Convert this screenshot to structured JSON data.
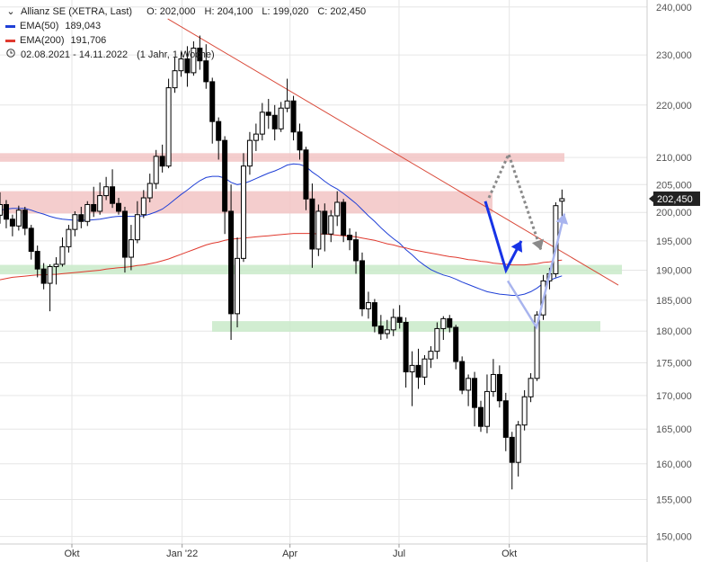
{
  "legend": {
    "title": "Allianz SE (XETRA, Last)",
    "ohlc": {
      "open": "O: 202,000",
      "high": "H: 204,100",
      "low": "L: 199,020",
      "close": "C: 202,450"
    },
    "ema50": {
      "label": "EMA(50)",
      "value": "189,043",
      "color": "#1f3fd6"
    },
    "ema200": {
      "label": "EMA(200)",
      "value": "191,706",
      "color": "#e03a2f"
    },
    "range": {
      "dates": "02.08.2021 - 14.11.2022",
      "period": "(1 Jahr, 1 Woche)",
      "icon": "clock-icon"
    }
  },
  "last_price_label": "202,450",
  "chart_data": {
    "type": "candlestick",
    "title": "",
    "y_ticks": [
      "240,000",
      "230,000",
      "220,000",
      "210,000",
      "205,000",
      "200,000",
      "195,000",
      "190,000",
      "185,000",
      "180,000",
      "175,000",
      "170,000",
      "165,000",
      "160,000",
      "155,000",
      "150,000"
    ],
    "y_tick_values": [
      240,
      230,
      220,
      210,
      205,
      200,
      195,
      190,
      185,
      180,
      175,
      170,
      165,
      160,
      155,
      150
    ],
    "y_scale": "log",
    "ylim": [
      149,
      241.5
    ],
    "x_range": [
      "2021-08-02",
      "2022-11-14"
    ],
    "x_ticks": [
      {
        "label": "Okt",
        "date": "2021-10-01"
      },
      {
        "label": "Jan '22",
        "date": "2022-01-01"
      },
      {
        "label": "Apr",
        "date": "2022-04-01"
      },
      {
        "label": "Jul",
        "date": "2022-07-01"
      },
      {
        "label": "Okt",
        "date": "2022-10-01"
      }
    ],
    "candles": [
      [
        199.5,
        201.4,
        203.6,
        198.0
      ],
      [
        201.4,
        198.8,
        202.2,
        197.2
      ],
      [
        198.8,
        197.6,
        199.6,
        195.8
      ],
      [
        197.6,
        200.4,
        201.2,
        196.8
      ],
      [
        200.4,
        197.2,
        201.0,
        196.0
      ],
      [
        197.2,
        193.2,
        197.8,
        191.8
      ],
      [
        193.2,
        190.2,
        194.2,
        188.8
      ],
      [
        190.2,
        187.8,
        191.2,
        186.8
      ],
      [
        187.8,
        190.6,
        191.0,
        183.2
      ],
      [
        190.6,
        191.0,
        192.2,
        187.6
      ],
      [
        191.0,
        194.0,
        195.6,
        190.6
      ],
      [
        194.0,
        197.0,
        197.8,
        193.0
      ],
      [
        197.0,
        199.6,
        200.2,
        195.8
      ],
      [
        199.6,
        198.4,
        201.0,
        197.2
      ],
      [
        198.4,
        201.4,
        202.0,
        197.6
      ],
      [
        201.4,
        200.2,
        204.6,
        199.2
      ],
      [
        200.2,
        203.0,
        205.4,
        199.6
      ],
      [
        203.0,
        204.6,
        206.4,
        202.2
      ],
      [
        204.6,
        201.6,
        207.8,
        200.8
      ],
      [
        201.6,
        200.2,
        202.6,
        199.6
      ],
      [
        200.2,
        192.2,
        201.0,
        189.6
      ],
      [
        192.2,
        195.2,
        197.8,
        190.0
      ],
      [
        195.2,
        199.6,
        202.0,
        194.6
      ],
      [
        199.6,
        202.6,
        204.0,
        199.0
      ],
      [
        202.6,
        205.2,
        207.0,
        201.8
      ],
      [
        205.2,
        210.2,
        211.4,
        204.2
      ],
      [
        210.2,
        208.4,
        212.4,
        207.2
      ],
      [
        208.4,
        223.4,
        225.2,
        208.0
      ],
      [
        223.4,
        226.8,
        229.6,
        222.4
      ],
      [
        226.8,
        229.2,
        230.6,
        225.6
      ],
      [
        229.2,
        226.4,
        231.8,
        223.6
      ],
      [
        226.4,
        231.4,
        232.8,
        225.8
      ],
      [
        231.4,
        228.8,
        234.0,
        227.0
      ],
      [
        228.8,
        224.6,
        232.2,
        223.2
      ],
      [
        224.6,
        216.8,
        225.4,
        212.6
      ],
      [
        216.8,
        213.2,
        217.6,
        209.6
      ],
      [
        213.2,
        200.2,
        214.0,
        196.2
      ],
      [
        200.2,
        182.8,
        205.0,
        178.6
      ],
      [
        182.8,
        192.0,
        195.6,
        180.6
      ],
      [
        192.0,
        208.4,
        210.8,
        191.4
      ],
      [
        208.4,
        213.2,
        214.8,
        206.8
      ],
      [
        213.2,
        214.4,
        216.4,
        211.2
      ],
      [
        214.4,
        218.6,
        220.4,
        213.2
      ],
      [
        218.6,
        218.0,
        221.2,
        215.4
      ],
      [
        218.0,
        215.4,
        220.0,
        213.2
      ],
      [
        215.4,
        219.4,
        220.6,
        214.8
      ],
      [
        219.4,
        220.8,
        225.2,
        218.6
      ],
      [
        220.8,
        214.8,
        221.8,
        213.2
      ],
      [
        214.8,
        211.4,
        216.4,
        209.6
      ],
      [
        211.4,
        202.4,
        212.0,
        200.4
      ],
      [
        202.4,
        193.6,
        205.2,
        190.4
      ],
      [
        193.6,
        200.2,
        201.4,
        192.4
      ],
      [
        200.2,
        196.2,
        201.6,
        193.2
      ],
      [
        196.2,
        199.4,
        200.4,
        194.8
      ],
      [
        199.4,
        201.8,
        203.8,
        197.6
      ],
      [
        201.8,
        196.0,
        202.4,
        194.8
      ],
      [
        196.0,
        195.2,
        197.2,
        193.4
      ],
      [
        195.2,
        191.6,
        196.6,
        189.4
      ],
      [
        191.6,
        183.6,
        193.0,
        182.4
      ],
      [
        183.6,
        184.6,
        186.4,
        182.0
      ],
      [
        184.6,
        180.8,
        185.2,
        179.8
      ],
      [
        180.8,
        179.6,
        182.6,
        178.6
      ],
      [
        179.6,
        180.2,
        181.8,
        178.8
      ],
      [
        180.2,
        182.2,
        183.6,
        179.2
      ],
      [
        182.2,
        181.4,
        184.2,
        180.4
      ],
      [
        181.4,
        173.6,
        182.2,
        171.2
      ],
      [
        173.6,
        174.6,
        176.8,
        168.4
      ],
      [
        174.6,
        172.8,
        177.2,
        171.0
      ],
      [
        172.8,
        175.6,
        176.2,
        171.6
      ],
      [
        175.6,
        176.8,
        177.6,
        174.2
      ],
      [
        176.8,
        180.4,
        181.4,
        175.6
      ],
      [
        180.4,
        182.0,
        182.4,
        178.6
      ],
      [
        182.0,
        180.6,
        182.6,
        179.8
      ],
      [
        180.6,
        175.2,
        181.0,
        174.0
      ],
      [
        175.2,
        170.8,
        176.0,
        170.2
      ],
      [
        170.8,
        172.6,
        173.2,
        168.4
      ],
      [
        172.6,
        168.2,
        173.6,
        165.4
      ],
      [
        168.2,
        165.4,
        169.2,
        164.6
      ],
      [
        165.4,
        170.6,
        173.2,
        164.4
      ],
      [
        170.6,
        173.2,
        175.6,
        169.8
      ],
      [
        173.2,
        169.2,
        174.6,
        168.2
      ],
      [
        169.2,
        163.8,
        170.4,
        161.8
      ],
      [
        163.8,
        160.2,
        164.6,
        156.4
      ],
      [
        160.2,
        165.6,
        166.2,
        158.2
      ],
      [
        165.6,
        169.8,
        170.8,
        164.8
      ],
      [
        169.8,
        172.6,
        173.4,
        169.0
      ],
      [
        172.6,
        182.6,
        183.2,
        172.2
      ],
      [
        182.6,
        188.2,
        189.2,
        181.8
      ],
      [
        188.2,
        189.4,
        190.4,
        186.8
      ],
      [
        189.4,
        201.2,
        201.8,
        188.8
      ],
      [
        202.0,
        202.45,
        204.1,
        199.02
      ]
    ],
    "series": [
      {
        "name": "EMA(50)",
        "color": "#1f3fd6",
        "values": [
          200.4,
          200.6,
          200.7,
          200.7,
          200.7,
          200.4,
          200.0,
          199.7,
          199.3,
          199.0,
          198.8,
          198.7,
          198.6,
          198.6,
          198.6,
          198.7,
          198.8,
          199.0,
          199.2,
          199.3,
          199.3,
          199.3,
          199.3,
          199.4,
          199.7,
          200.1,
          200.6,
          201.4,
          202.3,
          203.2,
          204.0,
          204.9,
          205.7,
          206.3,
          206.5,
          206.5,
          206.2,
          205.4,
          205.0,
          205.2,
          205.6,
          206.1,
          206.6,
          207.1,
          207.5,
          208.0,
          208.6,
          208.8,
          208.7,
          208.3,
          207.3,
          206.5,
          205.6,
          204.8,
          204.2,
          203.4,
          202.5,
          201.6,
          200.5,
          199.4,
          198.4,
          197.3,
          196.3,
          195.4,
          194.6,
          193.5,
          192.6,
          191.6,
          190.8,
          190.1,
          189.6,
          189.2,
          188.9,
          188.5,
          188.0,
          187.6,
          187.2,
          186.8,
          186.4,
          186.2,
          186.0,
          185.9,
          185.8,
          185.8,
          186.0,
          186.4,
          187.0,
          187.8,
          188.3,
          188.7,
          189.043
        ]
      },
      {
        "name": "EMA(200)",
        "color": "#e03a2f",
        "values": [
          188.4,
          188.6,
          188.8,
          188.9,
          189.0,
          189.1,
          189.2,
          189.2,
          189.3,
          189.3,
          189.4,
          189.5,
          189.6,
          189.7,
          189.8,
          189.9,
          190.0,
          190.2,
          190.3,
          190.4,
          190.5,
          190.6,
          190.8,
          190.9,
          191.1,
          191.3,
          191.6,
          191.9,
          192.3,
          192.7,
          193.1,
          193.5,
          193.9,
          194.3,
          194.6,
          194.8,
          195.1,
          195.3,
          195.4,
          195.5,
          195.6,
          195.7,
          195.8,
          195.9,
          196.0,
          196.1,
          196.2,
          196.3,
          196.3,
          196.3,
          196.3,
          196.2,
          196.2,
          196.1,
          196.0,
          195.9,
          195.8,
          195.7,
          195.5,
          195.3,
          195.1,
          194.8,
          194.5,
          194.3,
          194.0,
          193.8,
          193.5,
          193.3,
          193.1,
          192.9,
          192.7,
          192.5,
          192.3,
          192.2,
          192.0,
          191.8,
          191.7,
          191.5,
          191.4,
          191.2,
          191.1,
          191.0,
          190.9,
          190.9,
          190.9,
          191.0,
          191.1,
          191.3,
          191.4,
          191.6,
          191.706
        ]
      }
    ],
    "resistance_zones": [
      {
        "low": 209.2,
        "high": 210.8,
        "color": "#f2c4c4"
      },
      {
        "low": 199.8,
        "high": 203.8,
        "color": "#f2c4c4"
      }
    ],
    "support_zones": [
      {
        "low": 189.3,
        "high": 190.9,
        "color": "#c9eac9"
      },
      {
        "low": 179.9,
        "high": 181.6,
        "color": "#c9eac9"
      }
    ],
    "trendline": {
      "from": {
        "x": "2021-12-20",
        "y": 237.5
      },
      "to": {
        "x": "2022-12-31",
        "y": 187.5
      },
      "color": "#d94a3a"
    },
    "projections": [
      {
        "name": "primary",
        "color": "#1733e6",
        "points": [
          [
            202.0,
            203.0
          ],
          [
            190.0,
            189.8
          ],
          [
            195.0,
            195.6
          ]
        ]
      },
      {
        "name": "alternative-up",
        "color": "#a8b4ee",
        "points": [
          [
            188.2,
            180.6
          ],
          [
            180.6,
            199.8
          ]
        ]
      },
      {
        "name": "alternative-down",
        "color": "#8a8a8a",
        "dashed": true,
        "points": [
          [
            202.6,
            204.8
          ],
          [
            210.6,
            210.6
          ],
          [
            193.4,
            193.4
          ]
        ]
      }
    ]
  }
}
